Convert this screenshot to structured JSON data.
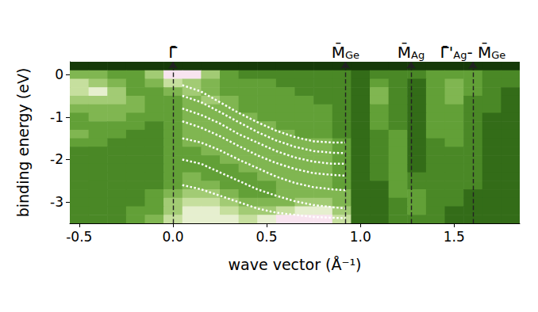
{
  "chart_data": {
    "type": "heatmap",
    "xlabel": "wave vector (Å⁻¹)",
    "ylabel": "binding energy (eV)",
    "xlim": [
      -0.55,
      1.85
    ],
    "ylim": [
      -3.5,
      0.3
    ],
    "xticks": [
      -0.5,
      {
        "value": 0,
        "label": "0.0"
      },
      0.5,
      {
        "value": 1,
        "label": "1.0"
      },
      1.5
    ],
    "yticks": [
      -3,
      -2,
      -1,
      0
    ],
    "grid": false,
    "x": [
      -0.5,
      -0.4,
      -0.3,
      -0.2,
      -0.1,
      0.0,
      0.1,
      0.2,
      0.3,
      0.4,
      0.5,
      0.6,
      0.7,
      0.8,
      0.9,
      1.0,
      1.1,
      1.2,
      1.3,
      1.4,
      1.5,
      1.6,
      1.7,
      1.8
    ],
    "y": [
      0.2,
      0.0,
      -0.2,
      -0.4,
      -0.6,
      -0.8,
      -1.0,
      -1.2,
      -1.4,
      -1.6,
      -1.8,
      -2.0,
      -2.2,
      -2.4,
      -2.6,
      -2.8,
      -3.0,
      -3.2,
      -3.4
    ],
    "cells": [
      [
        0,
        0,
        0,
        0,
        0,
        0,
        0,
        0,
        0,
        0,
        0,
        0,
        0,
        0,
        0,
        0,
        0,
        0,
        0,
        0,
        0,
        0,
        0,
        0
      ],
      [
        5,
        5,
        4,
        4,
        6,
        9,
        9,
        6,
        4,
        3,
        3,
        3,
        3,
        3,
        3,
        2,
        3,
        3,
        3,
        4,
        4,
        4,
        3,
        3
      ],
      [
        7,
        6,
        5,
        4,
        5,
        7,
        6,
        5,
        4,
        4,
        4,
        3,
        3,
        3,
        3,
        2,
        4,
        3,
        2,
        4,
        5,
        4,
        3,
        3
      ],
      [
        7,
        8,
        6,
        4,
        4,
        5,
        6,
        5,
        4,
        4,
        4,
        4,
        3,
        3,
        3,
        2,
        5,
        3,
        2,
        4,
        5,
        4,
        3,
        2
      ],
      [
        6,
        6,
        6,
        5,
        4,
        4,
        5,
        6,
        5,
        4,
        4,
        4,
        4,
        3,
        3,
        2,
        5,
        3,
        2,
        4,
        5,
        3,
        3,
        2
      ],
      [
        5,
        5,
        5,
        5,
        4,
        4,
        5,
        5,
        5,
        4,
        4,
        4,
        4,
        4,
        3,
        2,
        4,
        3,
        2,
        4,
        4,
        3,
        3,
        2
      ],
      [
        4,
        5,
        5,
        4,
        4,
        4,
        5,
        5,
        5,
        5,
        4,
        4,
        4,
        4,
        3,
        2,
        4,
        3,
        2,
        4,
        4,
        3,
        2,
        2
      ],
      [
        4,
        4,
        4,
        4,
        3,
        4,
        5,
        5,
        5,
        5,
        5,
        4,
        4,
        4,
        3,
        2,
        4,
        3,
        2,
        4,
        4,
        3,
        2,
        2
      ],
      [
        5,
        4,
        4,
        3,
        3,
        4,
        5,
        5,
        5,
        5,
        5,
        5,
        4,
        4,
        3,
        2,
        3,
        4,
        2,
        4,
        4,
        3,
        2,
        2
      ],
      [
        4,
        4,
        3,
        3,
        3,
        4,
        5,
        5,
        5,
        5,
        5,
        5,
        5,
        5,
        4,
        2,
        3,
        4,
        2,
        3,
        4,
        3,
        2,
        2
      ],
      [
        3,
        3,
        3,
        3,
        3,
        4,
        4,
        5,
        5,
        5,
        5,
        5,
        5,
        5,
        4,
        2,
        3,
        4,
        2,
        3,
        3,
        3,
        2,
        2
      ],
      [
        3,
        3,
        3,
        3,
        3,
        4,
        4,
        4,
        5,
        5,
        5,
        5,
        5,
        5,
        4,
        2,
        3,
        4,
        2,
        3,
        3,
        3,
        2,
        2
      ],
      [
        3,
        3,
        3,
        3,
        3,
        4,
        4,
        4,
        4,
        5,
        5,
        5,
        5,
        5,
        4,
        2,
        3,
        4,
        2,
        3,
        3,
        3,
        2,
        2
      ],
      [
        3,
        3,
        3,
        3,
        3,
        4,
        5,
        4,
        4,
        4,
        5,
        5,
        5,
        5,
        4,
        2,
        3,
        4,
        3,
        3,
        3,
        3,
        2,
        2
      ],
      [
        3,
        3,
        3,
        3,
        3,
        4,
        5,
        5,
        4,
        4,
        4,
        5,
        5,
        5,
        4,
        2,
        2,
        4,
        3,
        3,
        3,
        3,
        2,
        2
      ],
      [
        3,
        3,
        3,
        3,
        4,
        5,
        6,
        6,
        5,
        4,
        4,
        5,
        5,
        5,
        5,
        2,
        2,
        4,
        4,
        3,
        3,
        2,
        2,
        2
      ],
      [
        3,
        3,
        3,
        3,
        4,
        6,
        7,
        7,
        6,
        5,
        5,
        5,
        6,
        6,
        5,
        2,
        2,
        3,
        4,
        3,
        3,
        2,
        2,
        2
      ],
      [
        3,
        3,
        3,
        4,
        4,
        6,
        8,
        8,
        7,
        6,
        6,
        7,
        8,
        8,
        6,
        2,
        2,
        3,
        4,
        3,
        2,
        2,
        2,
        2
      ],
      [
        3,
        3,
        3,
        4,
        5,
        7,
        8,
        8,
        8,
        7,
        8,
        9,
        9,
        9,
        7,
        2,
        2,
        3,
        3,
        3,
        2,
        2,
        2,
        2
      ]
    ],
    "color_range": [
      0,
      9
    ],
    "colors": [
      "#163a09",
      "#24540f",
      "#336c18",
      "#4a8826",
      "#62a037",
      "#80b651",
      "#a2cb74",
      "#c6df9e",
      "#e6efcf",
      "#f8e4ef"
    ],
    "lines": [
      {
        "x": 0,
        "line_style": "dashed",
        "label": [
          {
            "text": "Γ̄"
          }
        ]
      },
      {
        "x": 0.92,
        "line_style": "dashed",
        "label": [
          {
            "text": "M̄",
            "sub": "Ge"
          }
        ]
      },
      {
        "x": 1.27,
        "line_style": "dashed",
        "label": [
          {
            "text": "M̄",
            "sub": "Ag"
          }
        ]
      },
      {
        "x": 1.6,
        "line_style": "dashed",
        "label": [
          {
            "text": "Γ̄'",
            "sub": "Ag"
          },
          {
            "text": "- M̄",
            "sub": "Ge"
          }
        ]
      }
    ],
    "bands": {
      "color": "#ffffff",
      "line_style": "dotted",
      "x": [
        0.05,
        0.15,
        0.25,
        0.35,
        0.45,
        0.55,
        0.65,
        0.75,
        0.85,
        0.92
      ],
      "values": [
        [
          -0.25,
          -0.4,
          -0.65,
          -0.9,
          -1.12,
          -1.32,
          -1.47,
          -1.57,
          -1.6,
          -1.6
        ],
        [
          -0.5,
          -0.65,
          -0.88,
          -1.12,
          -1.35,
          -1.55,
          -1.7,
          -1.8,
          -1.84,
          -1.85
        ],
        [
          -0.8,
          -0.95,
          -1.15,
          -1.4,
          -1.6,
          -1.8,
          -1.95,
          -2.05,
          -2.1,
          -2.1
        ],
        [
          -1.1,
          -1.25,
          -1.45,
          -1.68,
          -1.9,
          -2.08,
          -2.22,
          -2.32,
          -2.36,
          -2.38
        ],
        [
          -1.5,
          -1.6,
          -1.78,
          -2.0,
          -2.2,
          -2.4,
          -2.55,
          -2.65,
          -2.7,
          -2.72
        ],
        [
          -2.0,
          -2.1,
          -2.3,
          -2.5,
          -2.7,
          -2.85,
          -2.98,
          -3.07,
          -3.12,
          -3.15
        ],
        [
          -2.6,
          -2.7,
          -2.85,
          -3.0,
          -3.15,
          -3.25,
          -3.3,
          -3.35,
          -3.37,
          -3.38
        ]
      ]
    }
  }
}
